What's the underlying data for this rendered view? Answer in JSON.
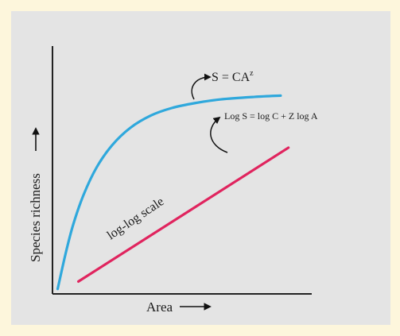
{
  "chart_data": {
    "type": "line",
    "title": "",
    "xlabel": "Area",
    "ylabel": "Species richness",
    "grid": false,
    "series": [
      {
        "name": "S = CA",
        "superscript": "z",
        "color": "#2fa8dc",
        "points": [
          [
            0.02,
            0.02
          ],
          [
            0.05,
            0.16
          ],
          [
            0.08,
            0.28
          ],
          [
            0.12,
            0.4
          ],
          [
            0.17,
            0.51
          ],
          [
            0.23,
            0.6
          ],
          [
            0.3,
            0.67
          ],
          [
            0.38,
            0.72
          ],
          [
            0.46,
            0.75
          ],
          [
            0.55,
            0.77
          ],
          [
            0.65,
            0.785
          ],
          [
            0.78,
            0.795
          ],
          [
            0.88,
            0.8
          ]
        ]
      },
      {
        "name": "Log S = log C + Z log A",
        "color": "#e0245e",
        "points": [
          [
            0.1,
            0.05
          ],
          [
            0.91,
            0.59
          ]
        ]
      }
    ],
    "annotations": [
      {
        "text": "log-log scale"
      }
    ]
  }
}
